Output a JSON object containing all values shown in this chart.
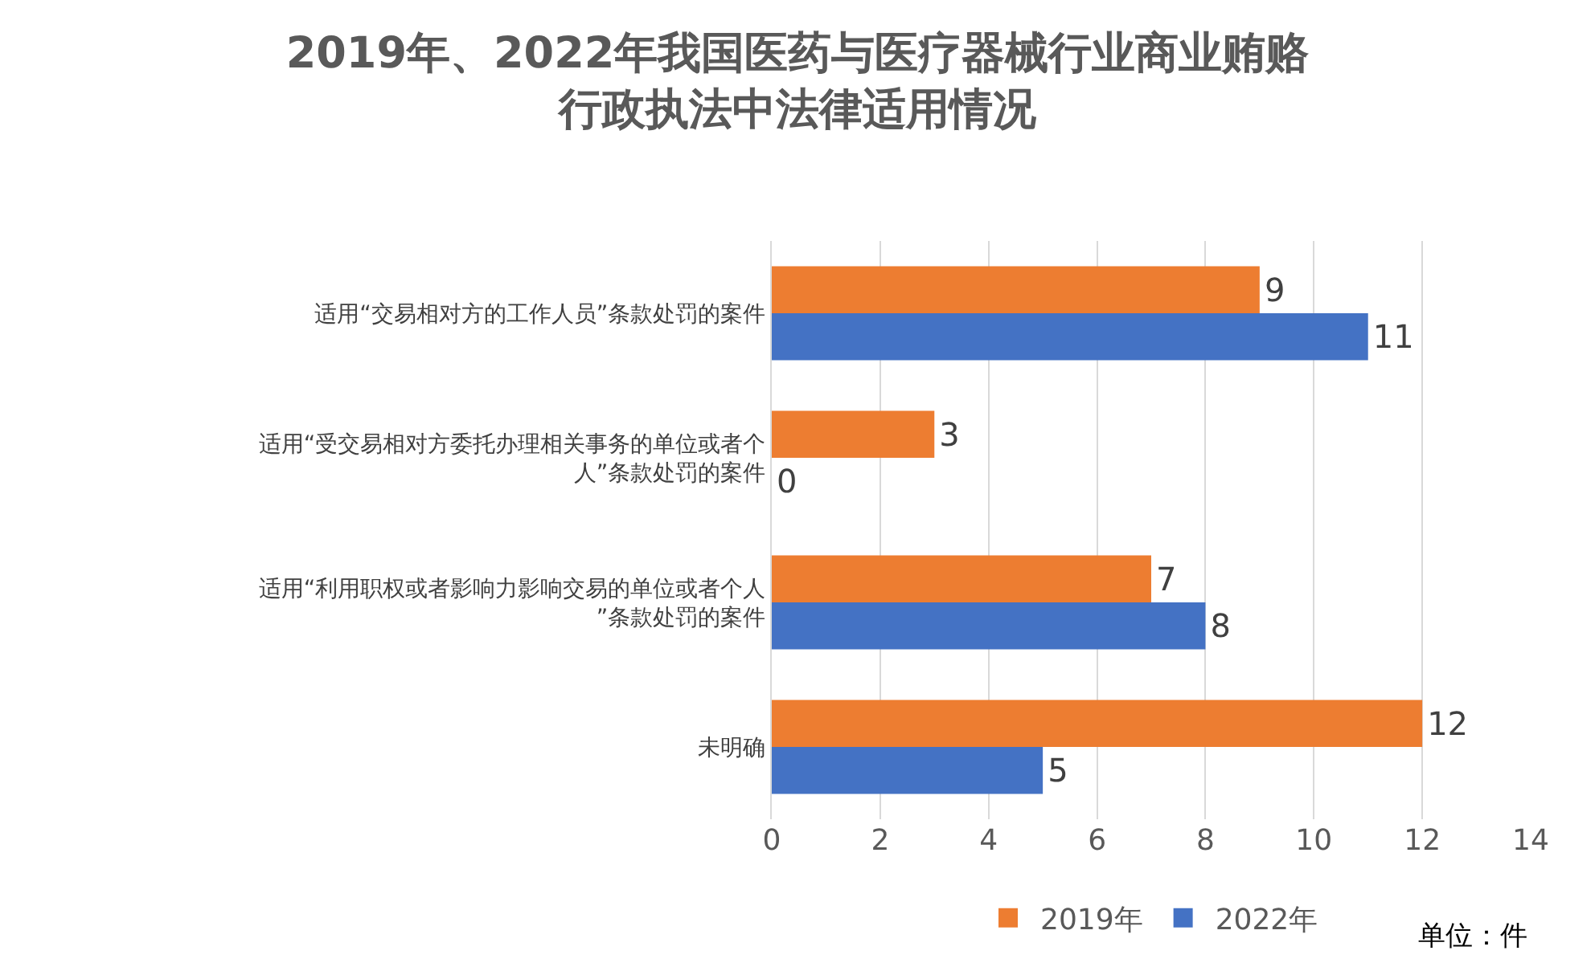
{
  "chart_data": {
    "type": "bar",
    "orientation": "horizontal",
    "title": "2019年、2022年我国医药与医疗器械行业商业贿赂行政执法中法律适用情况",
    "categories": [
      "适用“交易相对方的工作人员”条款处罚的案件",
      "适用“受交易相对方委托办理相关事务的单位或者个人”条款处罚的案件",
      "适用“利用职权或者影响力影响交易的单位或者个人”条款处罚的案件",
      "未明确"
    ],
    "series": [
      {
        "name": "2019年",
        "color": "#ed7d31",
        "values": [
          9,
          3,
          7,
          12
        ]
      },
      {
        "name": "2022年",
        "color": "#4472c4",
        "values": [
          11,
          0,
          8,
          5
        ]
      }
    ],
    "xlim": [
      0,
      14
    ],
    "xticks": [
      0,
      2,
      4,
      6,
      8,
      10,
      12,
      14
    ],
    "grid": "x",
    "legend": "bottom",
    "data_labels": true,
    "annotations": [
      "单位：件"
    ]
  }
}
